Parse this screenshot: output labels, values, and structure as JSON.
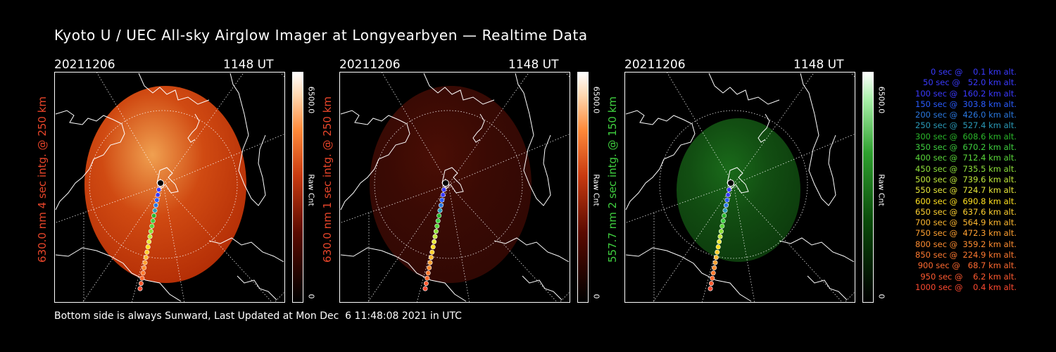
{
  "title": "Kyoto U / UEC All-sky Airglow Imager at Longyearbyen — Realtime Data",
  "footer": "Bottom side is always Sunward, Last Updated at Mon Dec  6 11:48:08 2021 in UTC",
  "panels": [
    {
      "date": "20211206",
      "time": "1148 UT",
      "ylabel": "630.0 nm 4 sec intg. @ 250 km",
      "ylabel_color": "#e8452a",
      "cbar_max": "6500.0",
      "cbar_unit": "Raw Cnt",
      "cbar_min": "0",
      "colormap": "red",
      "intensity": 0.45
    },
    {
      "date": "20211206",
      "time": "1148 UT",
      "ylabel": "630.0 nm 1 sec intg. @ 250 km",
      "ylabel_color": "#e8452a",
      "cbar_max": "6500.0",
      "cbar_unit": "Raw Cnt",
      "cbar_min": "0",
      "colormap": "red",
      "intensity": 0.1
    },
    {
      "date": "20211206",
      "time": "1148 UT",
      "ylabel": "557.7 nm 2 sec intg. @ 150 km",
      "ylabel_color": "#3fcf3f",
      "cbar_max": "6500.0",
      "cbar_unit": "Raw Cnt",
      "cbar_min": "0",
      "colormap": "green",
      "intensity": 0.12
    }
  ],
  "trajectory_legend": [
    {
      "text": "0 sec @    0.1 km alt.",
      "color": "#3a3aff"
    },
    {
      "text": "50 sec @   52.0 km alt.",
      "color": "#3a3aff"
    },
    {
      "text": "100 sec @  160.2 km alt.",
      "color": "#3a3aff"
    },
    {
      "text": "150 sec @  303.8 km alt.",
      "color": "#2a5cff"
    },
    {
      "text": "200 sec @  426.0 km alt.",
      "color": "#2a78e0"
    },
    {
      "text": "250 sec @  527.4 km alt.",
      "color": "#2a9ab8"
    },
    {
      "text": "300 sec @  608.6 km alt.",
      "color": "#2ab82a"
    },
    {
      "text": "350 sec @  670.2 km alt.",
      "color": "#3fcf3f"
    },
    {
      "text": "400 sec @  712.4 km alt.",
      "color": "#5ad83a"
    },
    {
      "text": "450 sec @  735.5 km alt.",
      "color": "#8ee03a"
    },
    {
      "text": "500 sec @  739.6 km alt.",
      "color": "#c0e83a"
    },
    {
      "text": "550 sec @  724.7 km alt.",
      "color": "#e8e83a"
    },
    {
      "text": "600 sec @  690.8 km alt.",
      "color": "#ffe020"
    },
    {
      "text": "650 sec @  637.6 km alt.",
      "color": "#ffd030"
    },
    {
      "text": "700 sec @  564.9 km alt.",
      "color": "#ffb830"
    },
    {
      "text": "750 sec @  472.3 km alt.",
      "color": "#ffa030"
    },
    {
      "text": "800 sec @  359.2 km alt.",
      "color": "#ff8c30"
    },
    {
      "text": "850 sec @  224.9 km alt.",
      "color": "#ff7a30"
    },
    {
      "text": "900 sec @   68.7 km alt.",
      "color": "#ff6a30"
    },
    {
      "text": "950 sec @    6.2 km alt.",
      "color": "#ff5a30"
    },
    {
      "text": "1000 sec @    0.4 km alt.",
      "color": "#ff4a30"
    }
  ]
}
